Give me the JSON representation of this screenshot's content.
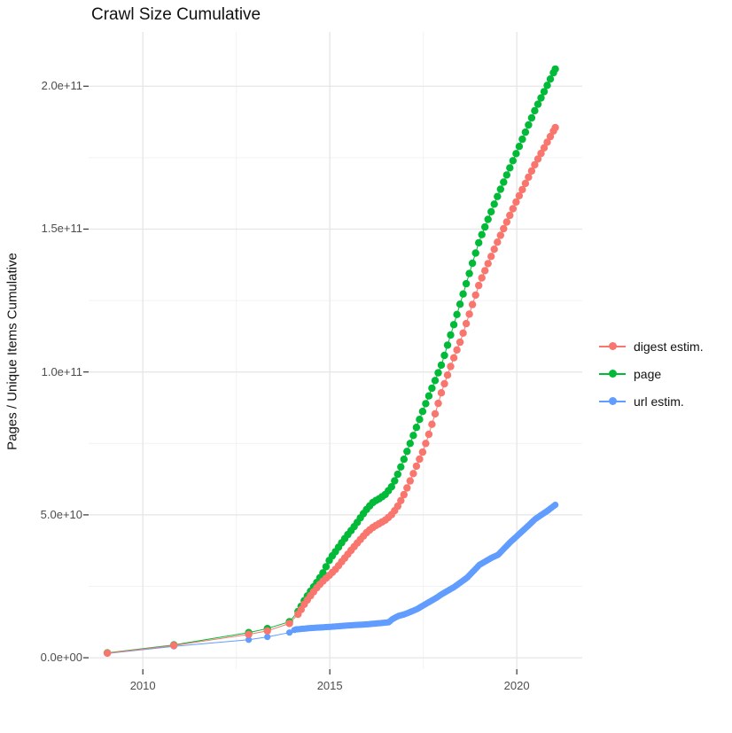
{
  "title": "Crawl Size Cumulative",
  "y_axis_title": "Pages / Unique Items Cumulative",
  "legend": {
    "items": [
      {
        "label": "digest estim.",
        "color": "#F8766D"
      },
      {
        "label": "page",
        "color": "#00BA38"
      },
      {
        "label": "url estim.",
        "color": "#619CFF"
      }
    ]
  },
  "chart_data": {
    "type": "scatter",
    "title": "Crawl Size Cumulative",
    "xlabel": "",
    "ylabel": "Pages / Unique Items Cumulative",
    "grid": true,
    "legend_position": "right",
    "unit_note": "values in units of 1e9 pages; y tick labels shown in scientific notation",
    "xlim": [
      2008.55,
      2021.75
    ],
    "ylim_e9": [
      -4,
      219
    ],
    "x_ticks": [
      2010,
      2015,
      2020
    ],
    "x_tick_labels": [
      "2010",
      "2015",
      "2020"
    ],
    "x_minor_ticks": [
      2012.5,
      2017.5
    ],
    "y_ticks_e9": [
      0,
      50,
      100,
      150,
      200
    ],
    "y_tick_labels": [
      "0.0e+00",
      "5.0e+10",
      "1.0e+11",
      "1.5e+11",
      "2.0e+11"
    ],
    "y_minor_ticks_e9": [
      25,
      75,
      125,
      175
    ],
    "series": [
      {
        "name": "url estim.",
        "color": "#619CFF",
        "dot_radius": 3.6,
        "dot_step": 0.045,
        "dots_from": 2014.05,
        "points": [
          [
            2009.05,
            1.5
          ],
          [
            2010.83,
            4.0
          ],
          [
            2012.83,
            6.3
          ],
          [
            2013.33,
            7.3
          ],
          [
            2013.92,
            8.8
          ],
          [
            2014.08,
            9.9
          ],
          [
            2014.5,
            10.4
          ],
          [
            2015.0,
            10.8
          ],
          [
            2015.5,
            11.3
          ],
          [
            2016.0,
            11.7
          ],
          [
            2016.42,
            12.2
          ],
          [
            2016.58,
            12.4
          ],
          [
            2016.67,
            13.5
          ],
          [
            2016.83,
            14.6
          ],
          [
            2017.0,
            15.2
          ],
          [
            2017.33,
            17.0
          ],
          [
            2017.5,
            18.3
          ],
          [
            2017.83,
            20.8
          ],
          [
            2018.0,
            22.3
          ],
          [
            2018.33,
            24.8
          ],
          [
            2018.67,
            28.0
          ],
          [
            2019.0,
            32.5
          ],
          [
            2019.33,
            35.0
          ],
          [
            2019.5,
            36.0
          ],
          [
            2019.83,
            40.5
          ],
          [
            2020.0,
            42.5
          ],
          [
            2020.33,
            46.5
          ],
          [
            2020.5,
            48.6
          ],
          [
            2020.83,
            51.5
          ],
          [
            2021.03,
            53.5
          ]
        ]
      },
      {
        "name": "page",
        "color": "#00BA38",
        "dot_radius": 4.2,
        "dot_step": 0.0833,
        "dots_from": 2014.15,
        "points": [
          [
            2009.05,
            1.7
          ],
          [
            2010.83,
            4.5
          ],
          [
            2012.83,
            8.8
          ],
          [
            2013.33,
            10.2
          ],
          [
            2013.92,
            12.6
          ],
          [
            2014.17,
            16.5
          ],
          [
            2014.33,
            20.3
          ],
          [
            2014.5,
            23.6
          ],
          [
            2014.67,
            26.7
          ],
          [
            2014.83,
            30.0
          ],
          [
            2015.0,
            34.5
          ],
          [
            2015.17,
            37.5
          ],
          [
            2015.33,
            40.5
          ],
          [
            2015.5,
            43.4
          ],
          [
            2015.67,
            46.2
          ],
          [
            2015.83,
            49.2
          ],
          [
            2016.0,
            52.2
          ],
          [
            2016.17,
            54.6
          ],
          [
            2016.33,
            55.7
          ],
          [
            2016.5,
            57.3
          ],
          [
            2016.67,
            60.2
          ],
          [
            2016.83,
            64.6
          ],
          [
            2017.0,
            70.0
          ],
          [
            2017.25,
            78.4
          ],
          [
            2017.5,
            86.8
          ],
          [
            2017.75,
            94.9
          ],
          [
            2018.0,
            103.0
          ],
          [
            2018.5,
            124.5
          ],
          [
            2019.0,
            146.0
          ],
          [
            2019.5,
            162.0
          ],
          [
            2020.0,
            177.0
          ],
          [
            2020.5,
            192.0
          ],
          [
            2021.03,
            206.0
          ]
        ]
      },
      {
        "name": "digest estim.",
        "color": "#F8766D",
        "dot_radius": 4.2,
        "dot_step": 0.0833,
        "dots_from": 2014.15,
        "points": [
          [
            2009.05,
            1.6
          ],
          [
            2010.83,
            4.3
          ],
          [
            2012.83,
            8.2
          ],
          [
            2013.33,
            9.4
          ],
          [
            2013.92,
            12.0
          ],
          [
            2014.17,
            15.5
          ],
          [
            2014.33,
            19.0
          ],
          [
            2014.5,
            22.0
          ],
          [
            2014.67,
            24.8
          ],
          [
            2014.83,
            27.0
          ],
          [
            2015.0,
            29.0
          ],
          [
            2015.17,
            31.2
          ],
          [
            2015.33,
            33.8
          ],
          [
            2015.5,
            36.5
          ],
          [
            2015.67,
            39.2
          ],
          [
            2015.83,
            41.6
          ],
          [
            2016.0,
            44.0
          ],
          [
            2016.17,
            45.8
          ],
          [
            2016.33,
            47.0
          ],
          [
            2016.5,
            48.3
          ],
          [
            2016.67,
            50.3
          ],
          [
            2016.83,
            53.3
          ],
          [
            2017.0,
            57.5
          ],
          [
            2017.17,
            62.5
          ],
          [
            2017.33,
            67.5
          ],
          [
            2017.5,
            72.5
          ],
          [
            2017.67,
            79.0
          ],
          [
            2017.83,
            86.0
          ],
          [
            2018.0,
            93.5
          ],
          [
            2018.33,
            105.5
          ],
          [
            2018.5,
            111.0
          ],
          [
            2019.0,
            131.0
          ],
          [
            2019.5,
            146.0
          ],
          [
            2020.0,
            160.0
          ],
          [
            2020.5,
            173.0
          ],
          [
            2021.03,
            185.5
          ]
        ]
      }
    ],
    "colors": {
      "grid_major": "#e6e6e6",
      "grid_minor": "#f2f2f2",
      "tick_mark": "#333333",
      "tick_label": "#4d4d4d"
    }
  }
}
